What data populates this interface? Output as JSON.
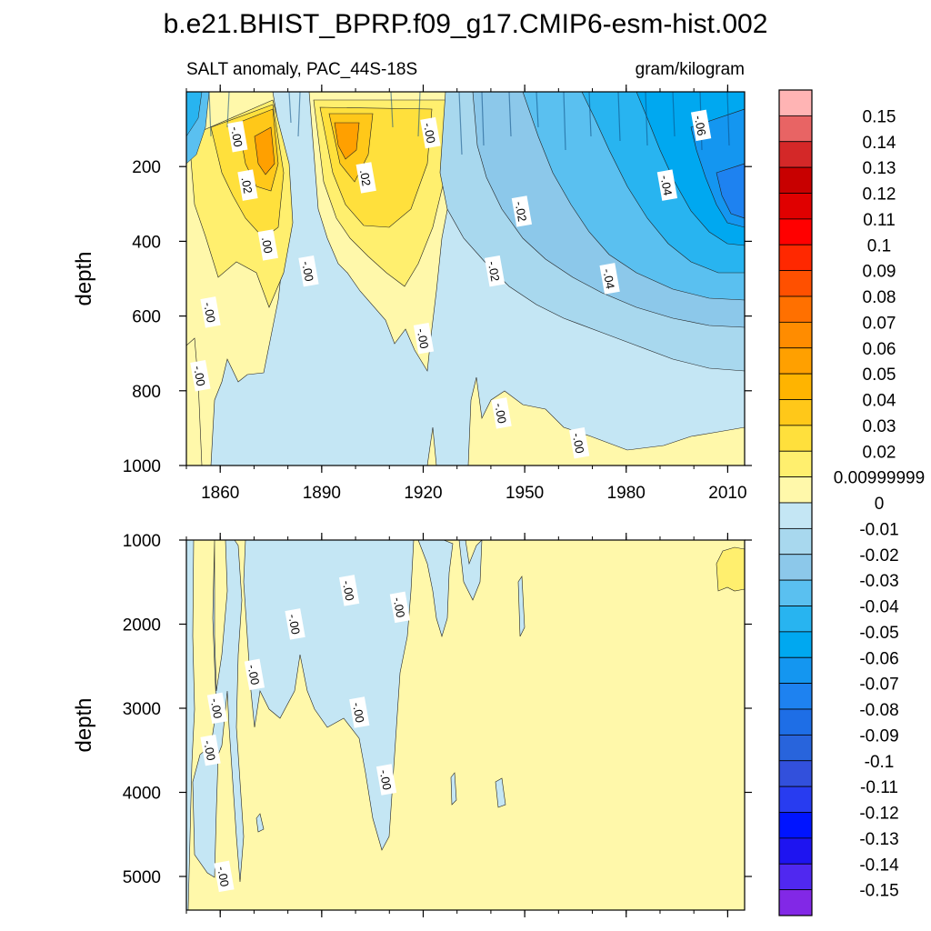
{
  "chart_data": [
    {
      "type": "heatmap",
      "panel": "upper",
      "title": "b.e21.BHIST_BPRP.f09_g17.CMIP6-esm-hist.002",
      "subtitle_left": "SALT anomaly, PAC_44S-18S",
      "subtitle_right": "gram/kilogram",
      "xlabel": "",
      "ylabel": "depth",
      "xlim": [
        1850,
        2015
      ],
      "ylim": [
        1000,
        0
      ],
      "x_ticks": [
        1860,
        1890,
        1920,
        1950,
        1980,
        2010
      ],
      "x_tick_labels": [
        "1860",
        "1890",
        "1920",
        "1950",
        "1980",
        "2010"
      ],
      "y_ticks": [
        200,
        400,
        600,
        800,
        1000
      ],
      "y_tick_labels": [
        "200",
        "400",
        "600",
        "800",
        "1000"
      ],
      "contour_labels": [
        {
          "text": "-.00",
          "x": 1865,
          "depth": 120
        },
        {
          "text": "-.00",
          "x": 1922,
          "depth": 110
        },
        {
          "text": "-.06",
          "x": 2002,
          "depth": 90
        },
        {
          "text": ".02",
          "x": 1868,
          "depth": 250
        },
        {
          "text": ".02",
          "x": 1903,
          "depth": 230
        },
        {
          "text": "-.04",
          "x": 1992,
          "depth": 250
        },
        {
          "text": "-.02",
          "x": 1949,
          "depth": 320
        },
        {
          "text": ".00",
          "x": 1874,
          "depth": 410
        },
        {
          "text": "-.00",
          "x": 1886,
          "depth": 480
        },
        {
          "text": "-.02",
          "x": 1941,
          "depth": 480
        },
        {
          "text": "-.04",
          "x": 1975,
          "depth": 500
        },
        {
          "text": "-.00",
          "x": 1857,
          "depth": 590
        },
        {
          "text": "-.00",
          "x": 1920,
          "depth": 660
        },
        {
          "text": "-.00",
          "x": 1854,
          "depth": 760
        },
        {
          "text": "-.00",
          "x": 1943,
          "depth": 860
        },
        {
          "text": "-.00",
          "x": 1966,
          "depth": 940
        }
      ]
    },
    {
      "type": "heatmap",
      "panel": "lower",
      "xlabel": "",
      "ylabel": "depth",
      "xlim": [
        1850,
        2015
      ],
      "ylim": [
        5400,
        1000
      ],
      "y_ticks": [
        1000,
        2000,
        3000,
        4000,
        5000
      ],
      "y_tick_labels": [
        "1000",
        "2000",
        "3000",
        "4000",
        "5000"
      ],
      "contour_labels": [
        {
          "text": "-.00",
          "x": 1898,
          "depth": 1600
        },
        {
          "text": "-.00",
          "x": 1913,
          "depth": 1800
        },
        {
          "text": "-.00",
          "x": 1882,
          "depth": 2000
        },
        {
          "text": "-.00",
          "x": 1870,
          "depth": 2600
        },
        {
          "text": "-.00",
          "x": 1859,
          "depth": 3000
        },
        {
          "text": "-.00",
          "x": 1901,
          "depth": 3050
        },
        {
          "text": "-.00",
          "x": 1857,
          "depth": 3500
        },
        {
          "text": "-.00",
          "x": 1909,
          "depth": 3850
        },
        {
          "text": "-.00",
          "x": 1861,
          "depth": 5000
        }
      ]
    }
  ],
  "colorbar": {
    "levels": [
      "0.15",
      "0.14",
      "0.13",
      "0.12",
      "0.11",
      "0.1",
      "0.09",
      "0.08",
      "0.07",
      "0.06",
      "0.05",
      "0.04",
      "0.03",
      "0.02",
      "0.00999999",
      "0",
      "-0.01",
      "-0.02",
      "-0.03",
      "-0.04",
      "-0.05",
      "-0.06",
      "-0.07",
      "-0.08",
      "-0.09",
      "-0.1",
      "-0.11",
      "-0.12",
      "-0.13",
      "-0.14",
      "-0.15"
    ],
    "colors": [
      "#ffb4b4",
      "#e86464",
      "#d42828",
      "#c80000",
      "#e00000",
      "#ff0000",
      "#ff2800",
      "#ff5000",
      "#ff7000",
      "#ff8c00",
      "#ffa000",
      "#ffb400",
      "#ffc819",
      "#ffe03c",
      "#ffef6e",
      "#fff8aa",
      "#c4e6f4",
      "#a8d8ee",
      "#8cc8ea",
      "#5ac0f0",
      "#28b4f0",
      "#00a8f0",
      "#1496f0",
      "#1e82f0",
      "#1e6ee6",
      "#2864dc",
      "#3250dc",
      "#283cf0",
      "#0014ff",
      "#1e14f0",
      "#5028f0",
      "#8228e6"
    ],
    "upper_panel_colors": {
      "pos_light": "#fff8aa",
      "pos_mid": "#ffef6e",
      "pos_strong": "#ffe03c",
      "pos_deep": "#ffc819",
      "pos_peak": "#ffa000",
      "neg_light": "#c4e6f4",
      "neg_mid": "#a8d8ee",
      "neg_03": "#8cc8ea",
      "neg_04": "#5ac0f0",
      "neg_05": "#28b4f0",
      "neg_06": "#00a8f0",
      "neg_07": "#1496f0",
      "neg_08": "#1e82f0"
    }
  }
}
